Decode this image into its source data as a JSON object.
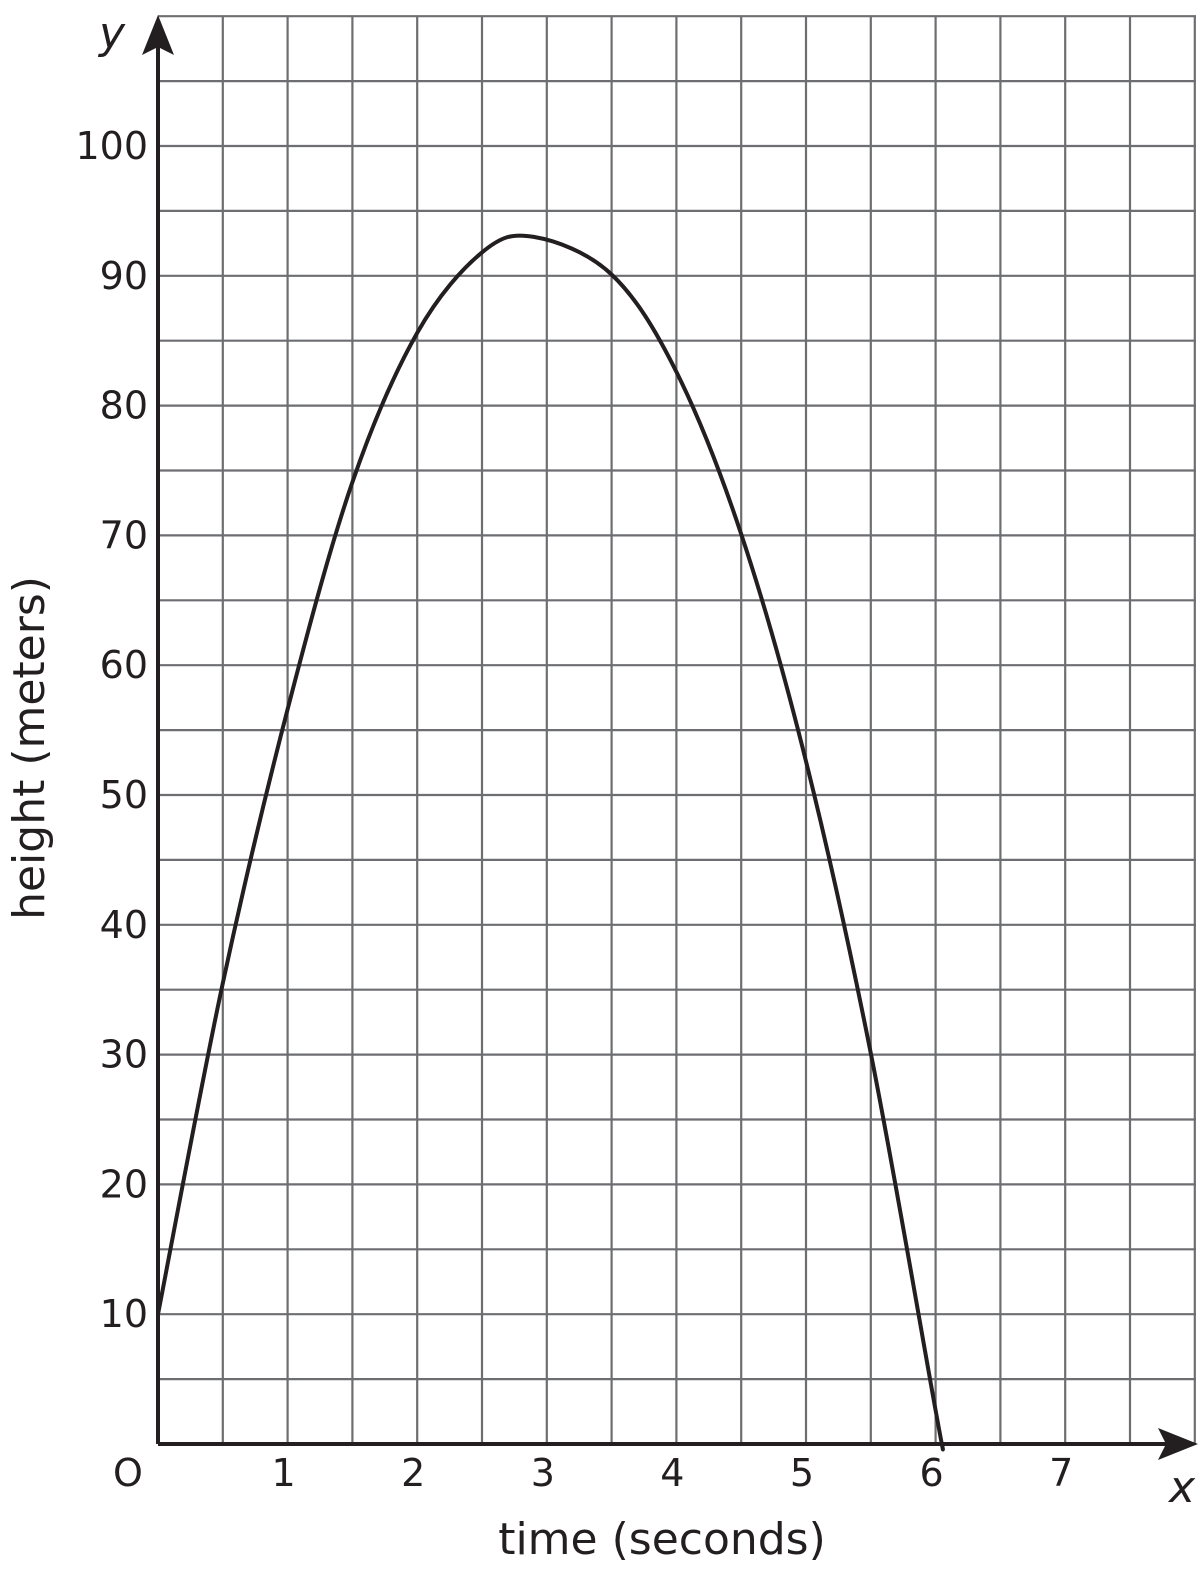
{
  "chart_data": {
    "type": "line",
    "xlabel": "time (seconds)",
    "ylabel": "height (meters)",
    "x_axis_var": "x",
    "y_axis_var": "y",
    "origin_label": "O",
    "xlim": [
      0,
      8
    ],
    "ylim": [
      0,
      110
    ],
    "x_ticks": [
      "1",
      "2",
      "3",
      "4",
      "5",
      "6",
      "7"
    ],
    "y_ticks": [
      "10",
      "20",
      "30",
      "40",
      "50",
      "60",
      "70",
      "80",
      "90",
      "100"
    ],
    "grid": true,
    "series": [
      {
        "x": [
          0,
          0.5,
          1,
          1.5,
          2,
          2.5,
          2.9,
          3.5,
          4,
          4.5,
          5,
          5.5,
          6,
          6.05
        ],
        "y": [
          10,
          35.5,
          56.6,
          74.1,
          85.6,
          91.8,
          93,
          90.1,
          82.6,
          70.1,
          52.6,
          30.1,
          2.6,
          0
        ]
      }
    ]
  }
}
